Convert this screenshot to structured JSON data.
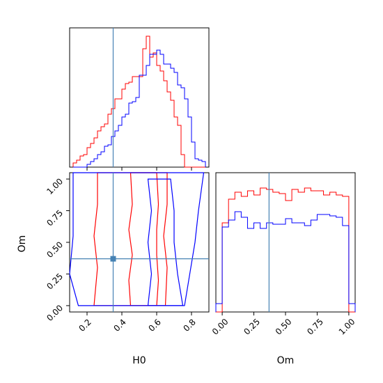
{
  "chart_data": {
    "type": "corner",
    "parameters": [
      "H0",
      "Om"
    ],
    "truth": {
      "H0": 0.35,
      "Om": 0.37
    },
    "colors": {
      "series_a": "#ff0000",
      "series_b": "#0000ff",
      "truth": "#4682b4"
    },
    "panels": [
      {
        "id": "hist-H0",
        "type": "step-histogram",
        "xlim": [
          0.1,
          0.9
        ],
        "ylim": [
          0,
          1
        ],
        "bin_edges": [
          0.12,
          0.14,
          0.16,
          0.18,
          0.2,
          0.22,
          0.24,
          0.26,
          0.28,
          0.3,
          0.32,
          0.34,
          0.36,
          0.38,
          0.4,
          0.42,
          0.44,
          0.46,
          0.48,
          0.5,
          0.52,
          0.54,
          0.56,
          0.58,
          0.6,
          0.62,
          0.64,
          0.66,
          0.68,
          0.7,
          0.72,
          0.74,
          0.76,
          0.78,
          0.8,
          0.82,
          0.84,
          0.86,
          0.88
        ],
        "series": [
          {
            "color": "#ff0000",
            "values": [
              0.03,
              0.05,
              0.08,
              0.09,
              0.14,
              0.17,
              0.21,
              0.26,
              0.29,
              0.31,
              0.38,
              0.42,
              0.49,
              0.49,
              0.56,
              0.6,
              0.61,
              0.65,
              0.65,
              0.65,
              0.85,
              0.94,
              0.79,
              0.82,
              0.73,
              0.69,
              0.62,
              0.54,
              0.48,
              0.36,
              0.3,
              0.09,
              0.0,
              0,
              0,
              0,
              0,
              0
            ]
          },
          {
            "color": "#0000ff",
            "values": [
              0,
              0,
              0,
              0,
              0.02,
              0.04,
              0.06,
              0.09,
              0.11,
              0.15,
              0.16,
              0.22,
              0.26,
              0.3,
              0.36,
              0.38,
              0.46,
              0.47,
              0.5,
              0.66,
              0.66,
              0.73,
              0.81,
              0.81,
              0.84,
              0.81,
              0.74,
              0.74,
              0.71,
              0.68,
              0.59,
              0.57,
              0.49,
              0.36,
              0.18,
              0.06,
              0.05,
              0.04
            ]
          }
        ]
      },
      {
        "id": "hist-Om",
        "type": "step-histogram",
        "xlim": [
          -0.05,
          1.05
        ],
        "ylim": [
          0,
          1
        ],
        "bin_edges": [
          -0.05,
          0,
          0.05,
          0.1,
          0.15,
          0.2,
          0.25,
          0.3,
          0.35,
          0.4,
          0.45,
          0.5,
          0.55,
          0.6,
          0.65,
          0.7,
          0.75,
          0.8,
          0.85,
          0.9,
          0.95,
          1.0,
          1.05
        ],
        "series": [
          {
            "color": "#ff0000",
            "values": [
              0,
              0.64,
              0.81,
              0.86,
              0.83,
              0.87,
              0.84,
              0.89,
              0.88,
              0.86,
              0.85,
              0.8,
              0.88,
              0.86,
              0.89,
              0.87,
              0.87,
              0.84,
              0.86,
              0.84,
              0.83,
              0
            ]
          },
          {
            "color": "#0000ff",
            "values": [
              0.06,
              0.61,
              0.66,
              0.72,
              0.68,
              0.6,
              0.64,
              0.6,
              0.64,
              0.63,
              0.63,
              0.67,
              0.64,
              0.64,
              0.62,
              0.66,
              0.7,
              0.7,
              0.69,
              0.68,
              0.62,
              0.06
            ]
          }
        ]
      },
      {
        "id": "contour-H0-Om",
        "type": "contour",
        "xlim": [
          0.1,
          0.9
        ],
        "ylim": [
          -0.05,
          1.05
        ],
        "xticks": [
          "0.2",
          "0.4",
          "0.6",
          "0.8"
        ],
        "yticks": [
          "0.00",
          "0.25",
          "0.50",
          "0.75",
          "1.00"
        ],
        "xlabel": "H0",
        "ylabel": "Om",
        "contours": [
          {
            "color": "#ff0000",
            "level": "inner",
            "points": [
              [
                0.45,
                0.0
              ],
              [
                0.44,
                0.2
              ],
              [
                0.46,
                0.4
              ],
              [
                0.44,
                0.6
              ],
              [
                0.46,
                0.8
              ],
              [
                0.45,
                1.05
              ],
              [
                0.6,
                1.05
              ],
              [
                0.61,
                0.8
              ],
              [
                0.6,
                0.6
              ],
              [
                0.6,
                0.4
              ],
              [
                0.61,
                0.2
              ],
              [
                0.6,
                0.0
              ]
            ]
          },
          {
            "color": "#ff0000",
            "level": "outer",
            "points": [
              [
                0.24,
                0.0
              ],
              [
                0.26,
                0.3
              ],
              [
                0.24,
                0.55
              ],
              [
                0.26,
                0.8
              ],
              [
                0.26,
                1.05
              ],
              [
                0.66,
                1.05
              ],
              [
                0.66,
                0.8
              ],
              [
                0.64,
                0.55
              ],
              [
                0.66,
                0.3
              ],
              [
                0.65,
                0.0
              ]
            ]
          },
          {
            "color": "#0000ff",
            "level": "inner",
            "points": [
              [
                0.55,
                0.0
              ],
              [
                0.57,
                0.25
              ],
              [
                0.55,
                0.5
              ],
              [
                0.57,
                0.75
              ],
              [
                0.55,
                1.0
              ],
              [
                0.68,
                1.0
              ],
              [
                0.7,
                0.75
              ],
              [
                0.7,
                0.5
              ],
              [
                0.72,
                0.25
              ],
              [
                0.75,
                0.0
              ]
            ]
          },
          {
            "color": "#0000ff",
            "level": "outer",
            "points": [
              [
                0.15,
                0.0
              ],
              [
                0.1,
                0.25
              ],
              [
                0.12,
                0.55
              ],
              [
                0.12,
                0.8
              ],
              [
                0.12,
                1.05
              ],
              [
                0.87,
                1.05
              ],
              [
                0.84,
                0.75
              ],
              [
                0.82,
                0.5
              ],
              [
                0.79,
                0.25
              ],
              [
                0.76,
                0.0
              ]
            ]
          }
        ]
      },
      {
        "id": "axis-Om-bottom",
        "type": "axis",
        "xticks": [
          "0.00",
          "0.25",
          "0.50",
          "0.75",
          "1.00"
        ],
        "xlabel": "Om"
      }
    ]
  }
}
